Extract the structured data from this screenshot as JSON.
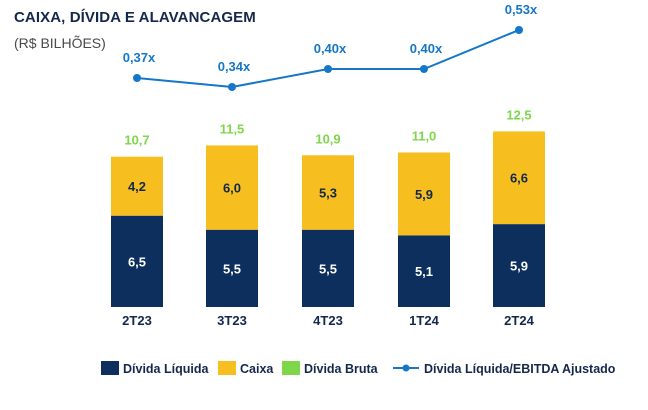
{
  "title": "CAIXA, DÍVIDA E ALAVANCAGEM",
  "subtitle": "(R$ BILHÕES)",
  "colors": {
    "divida_liquida": "#0d2f5e",
    "caixa": "#f6bf1f",
    "divida_bruta_label": "#7ed64a",
    "line": "#1577c7",
    "text_dark": "#13284b"
  },
  "chart_data": {
    "type": "bar",
    "stacked": true,
    "categories": [
      "2T23",
      "3T23",
      "4T23",
      "1T24",
      "2T24"
    ],
    "series": [
      {
        "name": "Dívida Líquida",
        "values": [
          6.5,
          5.5,
          5.5,
          5.1,
          5.9
        ],
        "labels": [
          "6,5",
          "5,5",
          "5,5",
          "5,1",
          "5,9"
        ]
      },
      {
        "name": "Caixa",
        "values": [
          4.2,
          6.0,
          5.3,
          5.9,
          6.6
        ],
        "labels": [
          "4,2",
          "6,0",
          "5,3",
          "5,9",
          "6,6"
        ]
      }
    ],
    "totals": {
      "name": "Dívida Bruta",
      "values": [
        10.7,
        11.5,
        10.9,
        11.0,
        12.5
      ],
      "labels": [
        "10,7",
        "11,5",
        "10,9",
        "11,0",
        "12,5"
      ]
    },
    "line": {
      "name": "Dívida Líquida/EBITDA Ajustado",
      "values": [
        0.37,
        0.34,
        0.4,
        0.4,
        0.53
      ],
      "labels": [
        "0,37x",
        "0,34x",
        "0,40x",
        "0,40x",
        "0,53x"
      ]
    },
    "legend": {
      "position": "bottom",
      "items": [
        "Dívida Líquida",
        "Caixa",
        "Dívida Bruta",
        "Dívida Líquida/EBITDA Ajustado"
      ]
    },
    "grid": false
  }
}
